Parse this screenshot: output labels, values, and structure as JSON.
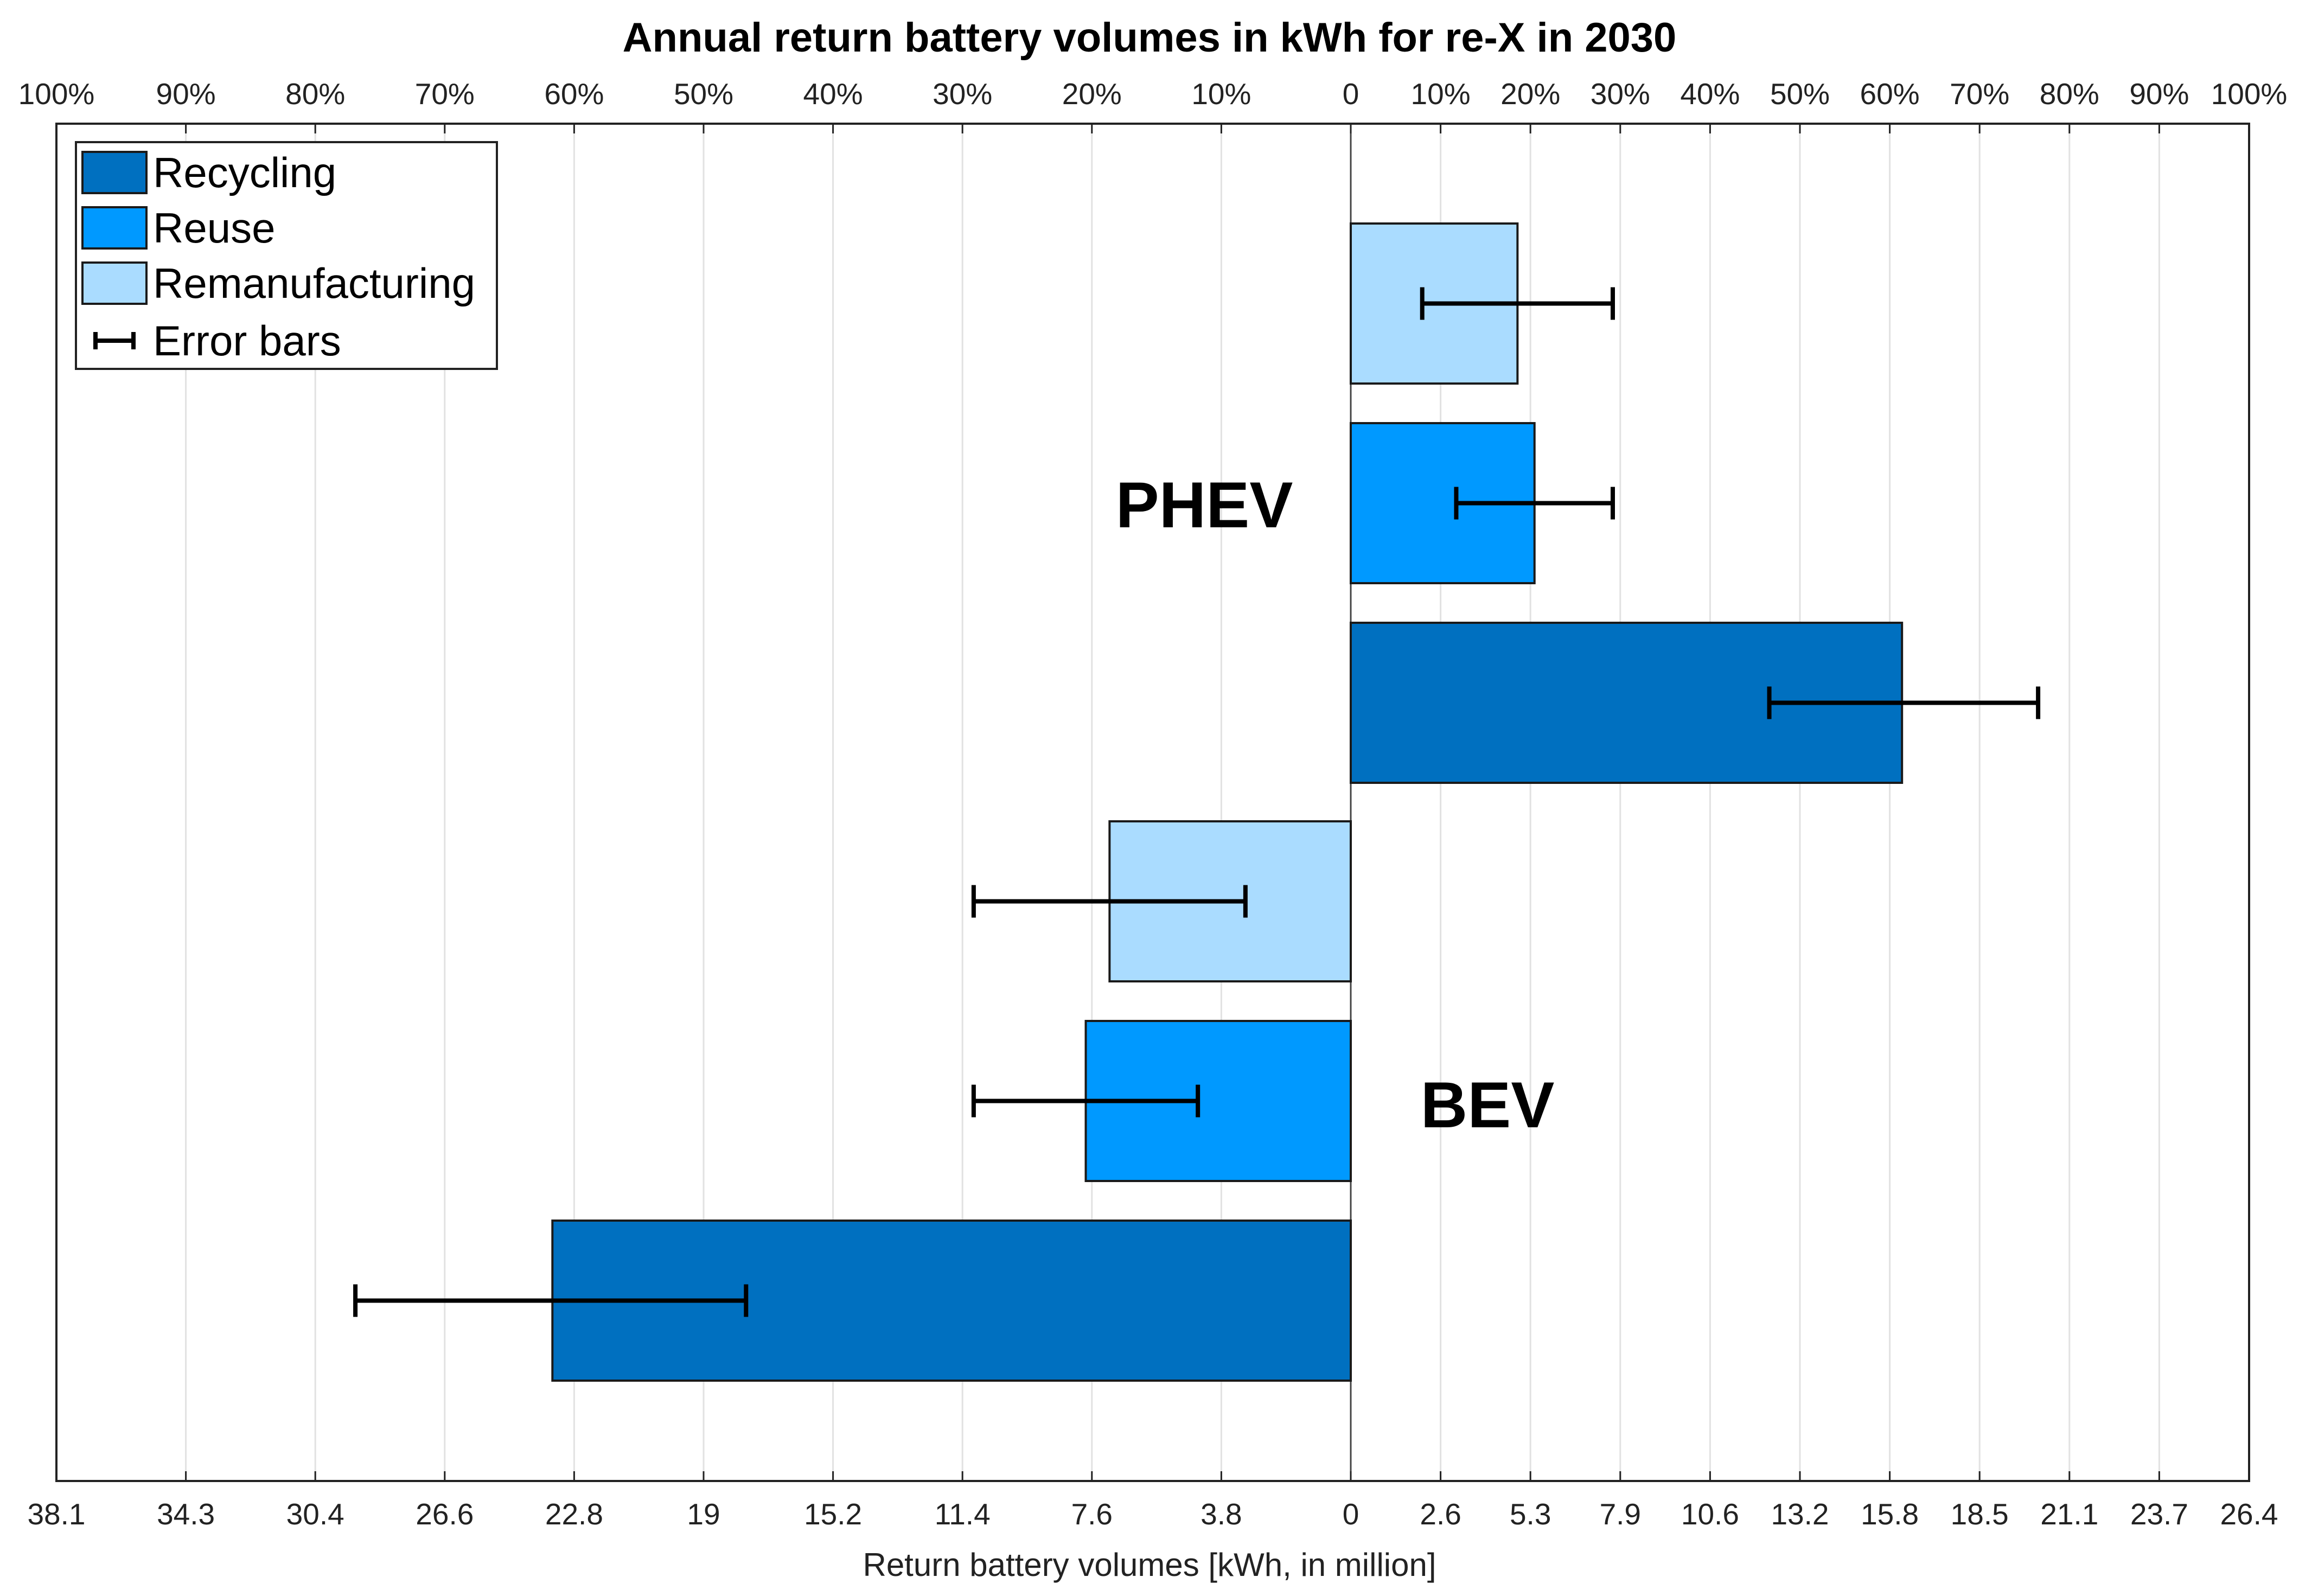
{
  "chart_data": {
    "type": "bar",
    "orientation": "horizontal-diverging",
    "title": "Annual return battery volumes in kWh for re-X in 2030",
    "xlabel": "Return battery volumes [kWh, in million]",
    "top_axis_ticks_left": [
      "100%",
      "90%",
      "80%",
      "70%",
      "60%",
      "50%",
      "40%",
      "30%",
      "20%",
      "10%",
      "0"
    ],
    "top_axis_ticks_right": [
      "10%",
      "20%",
      "30%",
      "40%",
      "50%",
      "60%",
      "70%",
      "80%",
      "90%",
      "100%"
    ],
    "bottom_axis_ticks_left": [
      "38.1",
      "34.3",
      "30.4",
      "26.6",
      "22.8",
      "19",
      "15.2",
      "11.4",
      "7.6",
      "3.8",
      "0"
    ],
    "bottom_axis_ticks_right": [
      "2.6",
      "5.3",
      "7.9",
      "10.6",
      "13.2",
      "15.8",
      "18.5",
      "21.1",
      "23.7",
      "26.4"
    ],
    "left_max": 38.1,
    "right_max": 26.4,
    "groups": [
      {
        "name": "PHEV",
        "side": "right",
        "bars": [
          {
            "series": "Remanufacturing",
            "value": 4.9,
            "err_low": 2.1,
            "err_high": 7.7
          },
          {
            "series": "Reuse",
            "value": 5.4,
            "err_low": 3.1,
            "err_high": 7.7
          },
          {
            "series": "Recycling",
            "value": 16.2,
            "err_low": 12.3,
            "err_high": 20.2
          }
        ]
      },
      {
        "name": "BEV",
        "side": "left",
        "bars": [
          {
            "series": "Remanufacturing",
            "value": 7.1,
            "err_low": 3.1,
            "err_high": 11.1
          },
          {
            "series": "Reuse",
            "value": 7.8,
            "err_low": 4.5,
            "err_high": 11.1
          },
          {
            "series": "Recycling",
            "value": 23.5,
            "err_low": 17.8,
            "err_high": 29.3
          }
        ]
      }
    ],
    "legend": {
      "position": "top-left",
      "entries": [
        {
          "label": "Recycling",
          "color": "#0070c0"
        },
        {
          "label": "Reuse",
          "color": "#0099ff"
        },
        {
          "label": "Remanufacturing",
          "color": "#aadcff"
        },
        {
          "label": "Error bars",
          "color": "#000000"
        }
      ]
    },
    "grid": true
  }
}
